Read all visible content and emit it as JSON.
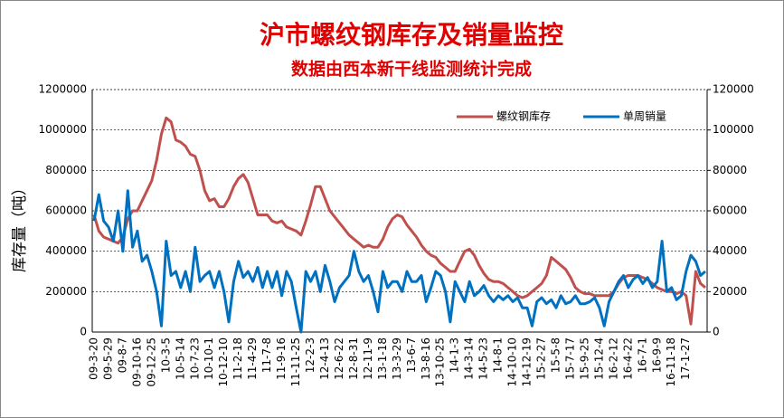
{
  "chart_data": {
    "type": "line",
    "title": "沪市螺纹钢库存及销量监控",
    "subtitle": "数据由西本新干线监测统计完成",
    "y_label": "库存量（吨）",
    "categories": [
      "09-3-20",
      null,
      null,
      "09-5-29",
      null,
      null,
      "09-8-7",
      null,
      null,
      "09-10-16",
      null,
      null,
      "09-12-25",
      null,
      null,
      "10-3-5",
      null,
      null,
      "10-5-14",
      null,
      null,
      "10-7-23",
      null,
      null,
      "10-10-1",
      null,
      null,
      "10-12-10",
      null,
      null,
      "11-2-18",
      null,
      null,
      "11-4-29",
      null,
      null,
      "11-7-8",
      null,
      null,
      "11-9-16",
      null,
      null,
      "11-11-25",
      null,
      null,
      "12-2-3",
      null,
      null,
      "12-4-13",
      null,
      null,
      "12-6-22",
      null,
      null,
      "12-8-31",
      null,
      null,
      "12-11-9",
      null,
      null,
      "13-1-18",
      null,
      null,
      "13-3-29",
      null,
      null,
      "13-6-7",
      null,
      null,
      "13-8-16",
      null,
      null,
      "13-10-25",
      null,
      null,
      "14-1-3",
      null,
      null,
      "14-3-14",
      null,
      null,
      "14-5-23",
      null,
      null,
      "14-8-1",
      null,
      null,
      "14-10-10",
      null,
      null,
      "14-12-19",
      null,
      null,
      "15-2-27",
      null,
      null,
      "15-5-8",
      null,
      null,
      "15-7-17",
      null,
      null,
      "15-9-25",
      null,
      null,
      "15-12-4",
      null,
      null,
      "16-2-12",
      null,
      null,
      "16-4-22",
      null,
      null,
      "16-7-1",
      null,
      null,
      "16-9-9",
      null,
      null,
      "16-11-18",
      null,
      null,
      "17-1-27",
      null,
      null,
      null,
      null
    ],
    "series": [
      {
        "name": "螺纹钢库存",
        "color": "#c0504d",
        "axis": "y",
        "values": [
          580000,
          500000,
          470000,
          460000,
          450000,
          440000,
          470000,
          560000,
          600000,
          600000,
          650000,
          700000,
          750000,
          850000,
          980000,
          1060000,
          1040000,
          950000,
          940000,
          920000,
          880000,
          870000,
          800000,
          700000,
          650000,
          660000,
          620000,
          620000,
          660000,
          720000,
          760000,
          780000,
          740000,
          660000,
          580000,
          580000,
          580000,
          550000,
          540000,
          550000,
          520000,
          510000,
          500000,
          480000,
          550000,
          630000,
          720000,
          720000,
          660000,
          600000,
          570000,
          540000,
          510000,
          480000,
          460000,
          440000,
          420000,
          430000,
          420000,
          420000,
          460000,
          520000,
          560000,
          580000,
          570000,
          530000,
          500000,
          470000,
          430000,
          400000,
          380000,
          370000,
          340000,
          320000,
          300000,
          300000,
          350000,
          400000,
          410000,
          380000,
          330000,
          290000,
          260000,
          250000,
          250000,
          240000,
          220000,
          200000,
          180000,
          170000,
          180000,
          200000,
          220000,
          240000,
          280000,
          370000,
          350000,
          330000,
          310000,
          270000,
          220000,
          200000,
          190000,
          190000,
          180000,
          180000,
          180000,
          180000,
          200000,
          240000,
          270000,
          280000,
          280000,
          280000,
          270000,
          260000,
          240000,
          220000,
          210000,
          200000,
          200000,
          190000,
          200000,
          180000,
          40000,
          300000,
          240000,
          220000
        ]
      },
      {
        "name": "单周销量",
        "color": "#0070c0",
        "axis": "y2",
        "values": [
          55000,
          68000,
          55000,
          52000,
          45000,
          60000,
          40000,
          70000,
          42000,
          50000,
          35000,
          38000,
          30000,
          20000,
          3000,
          45000,
          28000,
          30000,
          22000,
          30000,
          20000,
          42000,
          25000,
          28000,
          30000,
          22000,
          30000,
          20000,
          5000,
          25000,
          35000,
          27000,
          30000,
          25000,
          32000,
          22000,
          30000,
          22000,
          30000,
          18000,
          30000,
          25000,
          12000,
          0,
          30000,
          25000,
          30000,
          20000,
          33000,
          25000,
          15000,
          22000,
          25000,
          28000,
          40000,
          30000,
          25000,
          28000,
          20000,
          10000,
          30000,
          22000,
          25000,
          25000,
          20000,
          30000,
          25000,
          25000,
          28000,
          15000,
          22000,
          30000,
          28000,
          20000,
          5000,
          25000,
          20000,
          15000,
          25000,
          18000,
          20000,
          23000,
          18000,
          15000,
          18000,
          16000,
          18000,
          15000,
          17000,
          12000,
          12000,
          3000,
          15000,
          17000,
          14000,
          16000,
          12000,
          18000,
          14000,
          15000,
          18000,
          14000,
          14000,
          15000,
          17000,
          12000,
          3000,
          15000,
          20000,
          25000,
          28000,
          22000,
          26000,
          28000,
          24000,
          27000,
          22000,
          25000,
          45000,
          20000,
          22000,
          16000,
          18000,
          30000,
          38000,
          35000,
          28000,
          30000
        ]
      }
    ],
    "ylim": [
      0,
      1200000
    ],
    "yticks": [
      0,
      200000,
      400000,
      600000,
      800000,
      1000000,
      1200000
    ],
    "y2lim": [
      0,
      120000
    ],
    "y2ticks": [
      0,
      20000,
      40000,
      60000,
      80000,
      100000,
      120000
    ],
    "grid": true,
    "legend": "top-right"
  }
}
